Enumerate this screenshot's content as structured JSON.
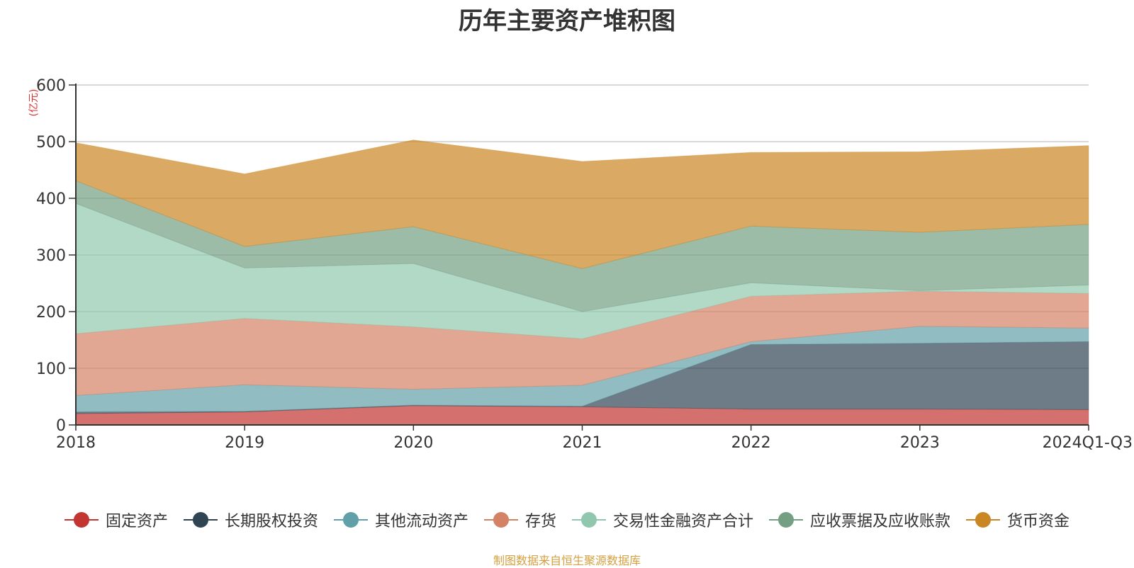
{
  "chart_data": {
    "type": "area",
    "stacked": true,
    "title": "历年主要资产堆积图",
    "unit_label": "(亿元)",
    "categories": [
      "2018",
      "2019",
      "2020",
      "2021",
      "2022",
      "2023",
      "2024Q1-Q3"
    ],
    "y_ticks": [
      "0",
      "100",
      "200",
      "300",
      "400",
      "500",
      "600"
    ],
    "ylim": [
      0,
      600
    ],
    "grid": true,
    "legend_position": "bottom",
    "series": [
      {
        "name": "固定资产",
        "color": "#c23531",
        "values": [
          20,
          23,
          34,
          32,
          28,
          28,
          27
        ]
      },
      {
        "name": "长期股权投资",
        "color": "#2f4554",
        "values": [
          3,
          1,
          1,
          1,
          114,
          116,
          120
        ]
      },
      {
        "name": "其他流动资产",
        "color": "#61a0a8",
        "values": [
          29,
          47,
          28,
          37,
          5,
          30,
          24
        ]
      },
      {
        "name": "存货",
        "color": "#d48265",
        "values": [
          109,
          117,
          110,
          82,
          80,
          62,
          61
        ]
      },
      {
        "name": "交易性金融资产合计",
        "color": "#91c7ae",
        "values": [
          230,
          89,
          112,
          48,
          24,
          1,
          15
        ]
      },
      {
        "name": "应收票据及应收账款",
        "color": "#749f83",
        "values": [
          40,
          38,
          65,
          76,
          100,
          103,
          107
        ]
      },
      {
        "name": "货币资金",
        "color": "#ca8622",
        "values": [
          67,
          128,
          153,
          189,
          130,
          142,
          139
        ]
      }
    ],
    "source_note": "制图数据来自恒生聚源数据库"
  }
}
